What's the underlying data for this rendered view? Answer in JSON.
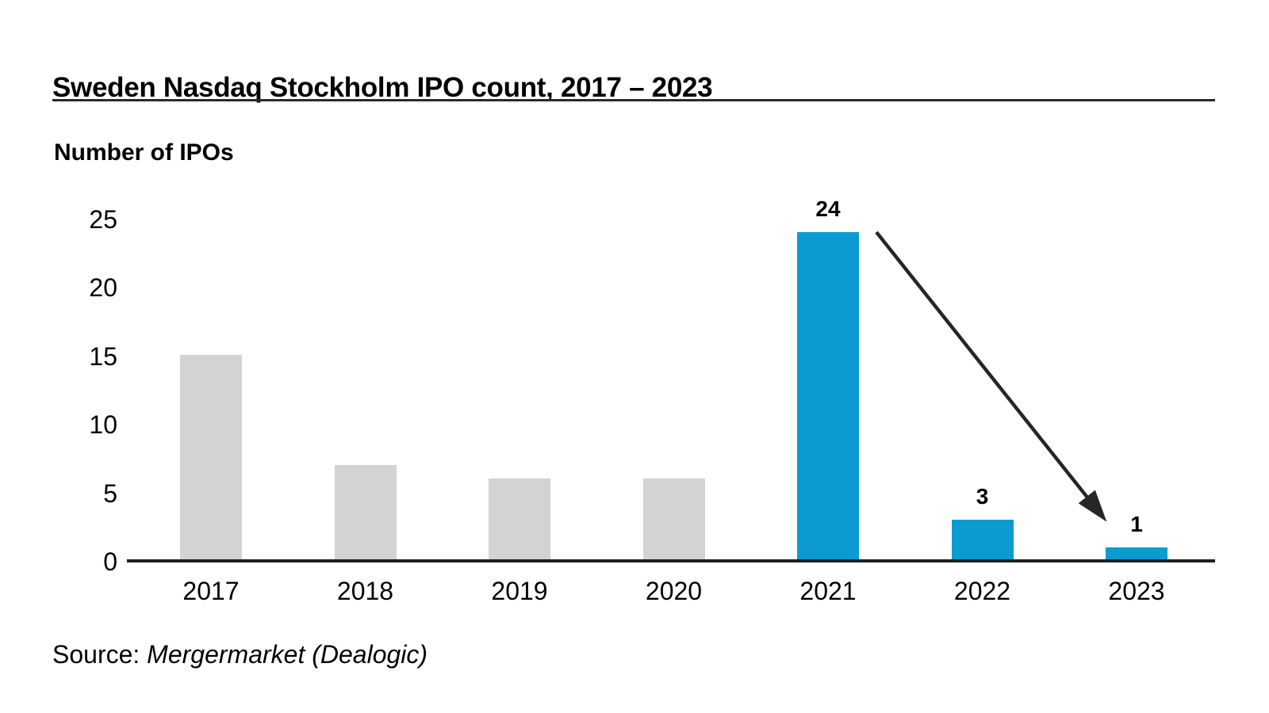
{
  "chart_data": {
    "type": "bar",
    "title": "Sweden Nasdaq Stockholm IPO count, 2017 – 2023",
    "ylabel": "Number of IPOs",
    "categories": [
      "2017",
      "2018",
      "2019",
      "2020",
      "2021",
      "2022",
      "2023"
    ],
    "values": [
      15,
      7,
      6,
      6,
      24,
      3,
      1
    ],
    "highlighted_categories": [
      "2021",
      "2022",
      "2023"
    ],
    "value_labels": {
      "2021": "24",
      "2022": "3",
      "2023": "1"
    },
    "yticks": [
      0,
      5,
      10,
      15,
      20,
      25
    ],
    "ylim": [
      0,
      25
    ],
    "grid": false,
    "legend": "none",
    "annotation": {
      "type": "arrow",
      "description": "decline arrow from 2021 peak down to 2023 bar",
      "from_category": "2021",
      "to_category": "2023"
    }
  },
  "colors": {
    "bar_highlight": "#0b9bd1",
    "bar_muted": "#d3d3d3",
    "axis": "#1f1f1f",
    "arrow": "#262626",
    "text": "#000000"
  },
  "source": {
    "prefix": "Source:",
    "text": "Mergermarket (Dealogic)"
  }
}
